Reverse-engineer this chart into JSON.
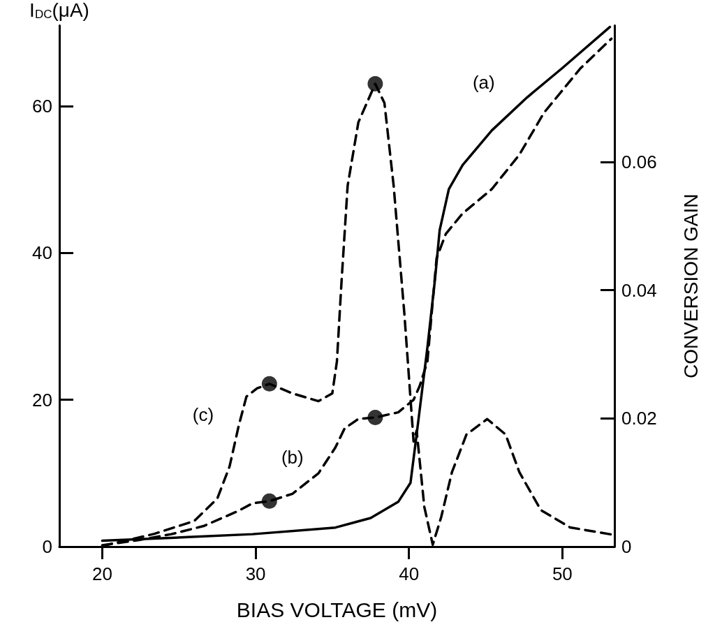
{
  "chart_data": {
    "type": "line",
    "xlabel": "BIAS VOLTAGE (mV)",
    "ylabel": "I$_{DC}$(μA)",
    "y2label": "CONVERSION GAIN",
    "xlim": [
      17.2,
      53.4
    ],
    "xticks": [
      20,
      30,
      40,
      50
    ],
    "ylim": [
      0,
      71
    ],
    "yticks": [
      0,
      20,
      40,
      60
    ],
    "y2lim": [
      0,
      0.0813
    ],
    "y2ticks": [
      0,
      0.02,
      0.04,
      0.06
    ],
    "marker": "none",
    "legend": false,
    "series": [
      {
        "name": "(a)",
        "color": "#000000",
        "line_style": "solid",
        "x": [
          20,
          25.6,
          29.8,
          35.2,
          37.5,
          39.3,
          40.1,
          40.5,
          41.2,
          41.7,
          42.0,
          42.6,
          43.5,
          45.4,
          47.7,
          50.0,
          53.1
        ],
        "values": [
          0.8,
          1.3,
          1.7,
          2.6,
          3.9,
          6.1,
          8.7,
          15.3,
          27.1,
          36.5,
          43.1,
          48.7,
          52.0,
          56.7,
          61.2,
          65.2,
          70.8
        ]
      },
      {
        "name": "(b)",
        "color": "#000000",
        "line_style": "dashed",
        "x": [
          20,
          22.4,
          24.5,
          26.6,
          28.8,
          29.8,
          30.9,
          32.4,
          34.1,
          35.2,
          35.8,
          36.7,
          37.8,
          39.3,
          40.3,
          40.7,
          41.2,
          41.8,
          42.4,
          43.5,
          45.4,
          47.2,
          48.8,
          51.2,
          53.2
        ],
        "values": [
          0.2,
          0.9,
          1.7,
          2.8,
          4.8,
          5.9,
          6.2,
          7.2,
          10.0,
          13.5,
          16.1,
          17.4,
          17.6,
          18.3,
          20.0,
          21.9,
          25.2,
          39.3,
          42.6,
          45.4,
          48.7,
          53.4,
          59.1,
          65.2,
          69.2
        ]
      },
      {
        "name": "(c)",
        "color": "#000000",
        "line_style": "dashed",
        "axis": "y2",
        "x": [
          20,
          23.4,
          26.0,
          27.5,
          28.3,
          28.9,
          29.4,
          30.1,
          30.9,
          32.4,
          34.1,
          35.0,
          35.3,
          35.6,
          36.0,
          36.7,
          37.8,
          38.4,
          39.0,
          39.7,
          40.3,
          40.5,
          41.0,
          41.55,
          42.1,
          42.8,
          43.75,
          45.1,
          46.3,
          47.2,
          48.6,
          50.5,
          53.2
        ],
        "values": [
          0.0001,
          0.002,
          0.004,
          0.0075,
          0.0125,
          0.0189,
          0.0234,
          0.0247,
          0.0254,
          0.0239,
          0.0227,
          0.0239,
          0.0289,
          0.0413,
          0.0563,
          0.0662,
          0.0722,
          0.0692,
          0.0563,
          0.0363,
          0.0164,
          0.0181,
          0.0062,
          0.0003,
          0.0046,
          0.0116,
          0.0175,
          0.0199,
          0.0175,
          0.0116,
          0.0057,
          0.003,
          0.0019
        ]
      },
      {
        "type": "scatter",
        "color": "#000000",
        "marker": "circle",
        "x": [
          30.9,
          37.8
        ],
        "values": [
          6.2,
          17.6
        ]
      },
      {
        "type": "scatter",
        "color": "#000000",
        "marker": "circle",
        "axis": "y2",
        "x": [
          30.9,
          37.8
        ],
        "values": [
          0.0254,
          0.0722
        ]
      }
    ]
  }
}
